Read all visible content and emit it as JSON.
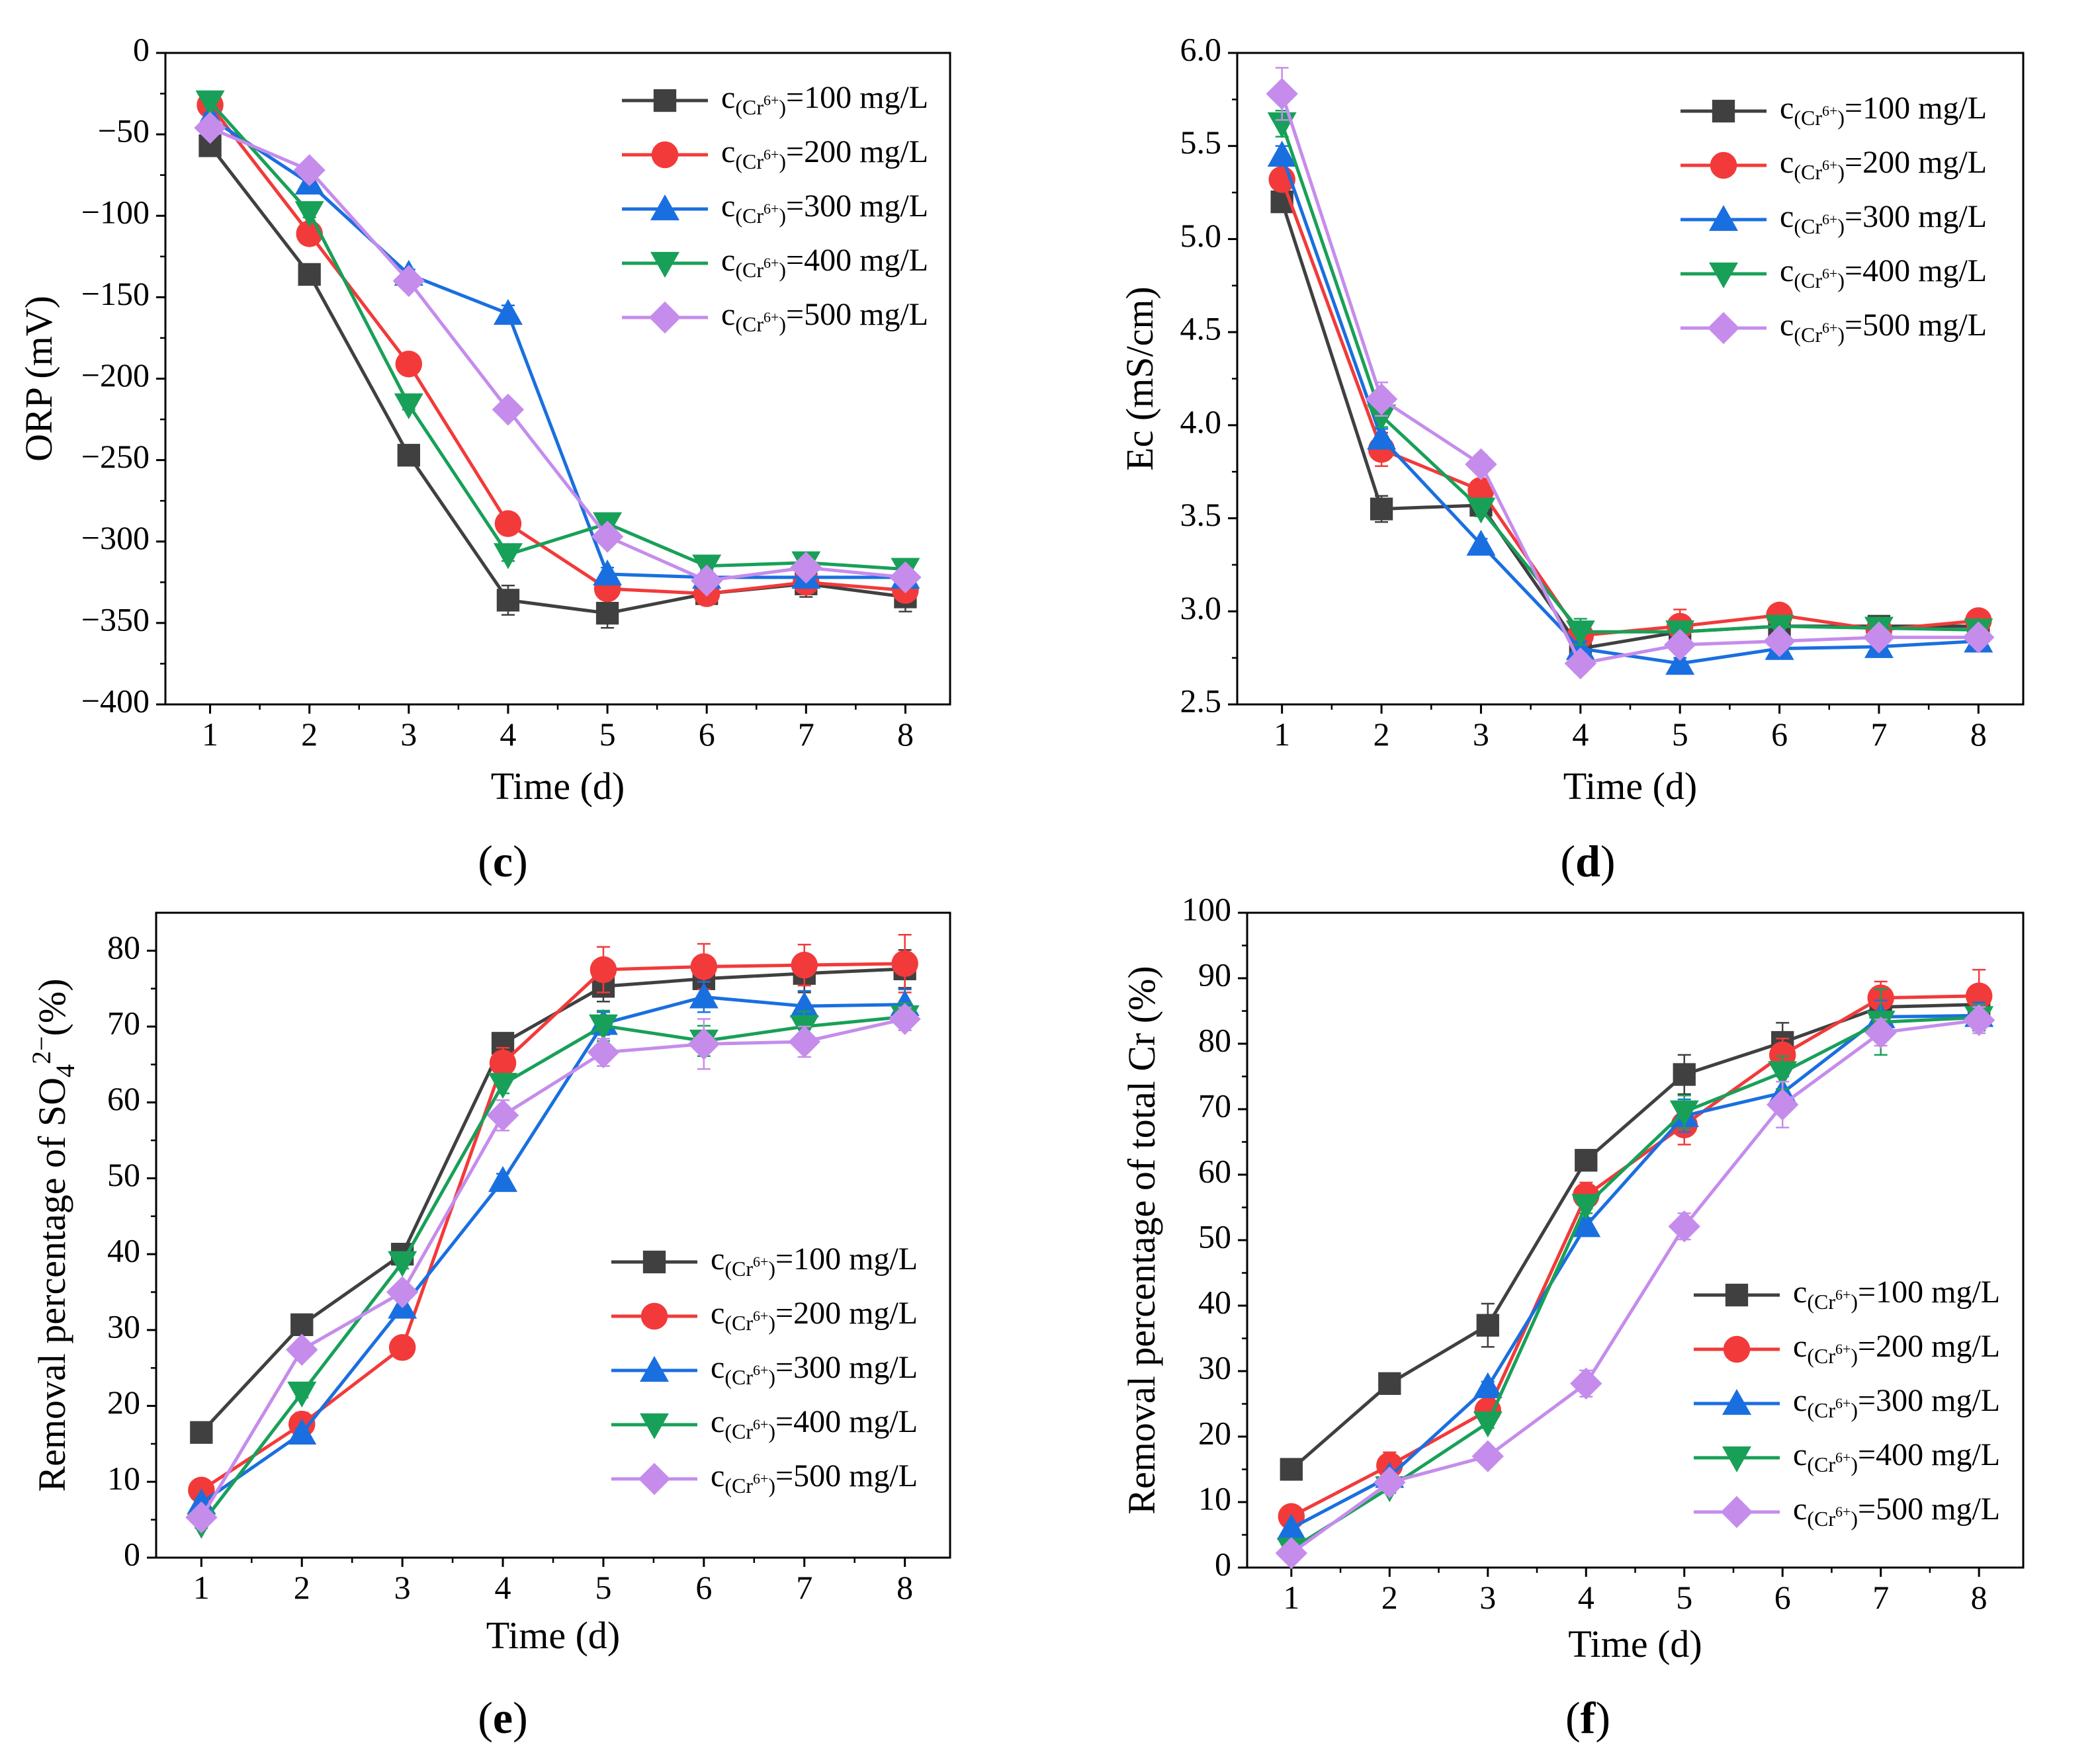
{
  "colors": {
    "100": "#404040",
    "200": "#f23a3a",
    "300": "#1a6fe0",
    "400": "#18a058",
    "500": "#c58cec"
  },
  "legend_template": {
    "prefix": "c",
    "species_open": "(Cr",
    "charge": "6+",
    "species_close": ")",
    "unit": " mg/L"
  },
  "chart_data": [
    {
      "panel": "c",
      "type": "line",
      "xlabel": "Time (d)",
      "ylabel": "ORP (mV)",
      "ylim": [
        -400,
        0
      ],
      "yticks": [
        0,
        -50,
        -100,
        -150,
        -200,
        -250,
        -300,
        -350,
        -400
      ],
      "ytick_labels": [
        "0",
        "−50",
        "−100",
        "−150",
        "−200",
        "−250",
        "−300",
        "−350",
        "−400"
      ],
      "x": [
        1,
        2,
        3,
        4,
        5,
        6,
        7,
        8
      ],
      "legend_position": "top-right",
      "series": [
        {
          "name": "c(Cr6+)=100 mg/L",
          "conc": "100",
          "marker": "square",
          "values": [
            -57,
            -136,
            -247,
            -336,
            -344,
            -332,
            -326,
            -334
          ],
          "err": [
            3,
            3,
            4,
            9,
            9,
            5,
            8,
            9
          ]
        },
        {
          "name": "c(Cr6+)=200 mg/L",
          "conc": "200",
          "marker": "circle",
          "values": [
            -32,
            -111,
            -191,
            -289,
            -329,
            -332,
            -325,
            -330
          ],
          "err": [
            3,
            3,
            3,
            4,
            4,
            5,
            5,
            5
          ]
        },
        {
          "name": "c(Cr6+)=300 mg/L",
          "conc": "300",
          "marker": "triangle-up",
          "values": [
            -40,
            -80,
            -136,
            -160,
            -320,
            -322,
            -322,
            -322
          ],
          "err": [
            3,
            3,
            3,
            5,
            4,
            4,
            4,
            4
          ]
        },
        {
          "name": "c(Cr6+)=400 mg/L",
          "conc": "400",
          "marker": "triangle-down",
          "values": [
            -30,
            -98,
            -216,
            -308,
            -289,
            -315,
            -313,
            -317
          ],
          "err": [
            3,
            3,
            3,
            4,
            4,
            3,
            6,
            4
          ]
        },
        {
          "name": "c(Cr6+)=500 mg/L",
          "conc": "500",
          "marker": "diamond",
          "values": [
            -46,
            -72,
            -140,
            -219,
            -297,
            -324,
            -316,
            -322
          ],
          "err": [
            3,
            3,
            3,
            3,
            4,
            4,
            4,
            4
          ]
        }
      ]
    },
    {
      "panel": "d",
      "type": "line",
      "xlabel": "Time (d)",
      "ylabel": "Ec (mS/cm)",
      "ylim": [
        2.5,
        6.0
      ],
      "yticks": [
        2.5,
        3.0,
        3.5,
        4.0,
        4.5,
        5.0,
        5.5,
        6.0
      ],
      "ytick_labels": [
        "2.5",
        "3.0",
        "3.5",
        "4.0",
        "4.5",
        "5.0",
        "5.5",
        "6.0"
      ],
      "x": [
        1,
        2,
        3,
        4,
        5,
        6,
        7,
        8
      ],
      "legend_position": "top-right",
      "series": [
        {
          "name": "c(Cr6+)=100 mg/L",
          "conc": "100",
          "marker": "square",
          "values": [
            5.2,
            3.55,
            3.57,
            2.8,
            2.89,
            2.92,
            2.92,
            2.92
          ],
          "err": [
            0.05,
            0.07,
            0.04,
            0.05,
            0.04,
            0.04,
            0.04,
            0.04
          ]
        },
        {
          "name": "c(Cr6+)=200 mg/L",
          "conc": "200",
          "marker": "circle",
          "values": [
            5.32,
            3.87,
            3.65,
            2.87,
            2.92,
            2.98,
            2.9,
            2.95
          ],
          "err": [
            0.06,
            0.09,
            0.05,
            0.05,
            0.09,
            0.05,
            0.04,
            0.04
          ]
        },
        {
          "name": "c(Cr6+)=300 mg/L",
          "conc": "300",
          "marker": "triangle-up",
          "values": [
            5.45,
            3.93,
            3.36,
            2.8,
            2.72,
            2.8,
            2.81,
            2.84
          ],
          "err": [
            0.05,
            0.05,
            0.03,
            0.04,
            0.03,
            0.04,
            0.03,
            0.04
          ]
        },
        {
          "name": "c(Cr6+)=400 mg/L",
          "conc": "400",
          "marker": "triangle-down",
          "values": [
            5.62,
            4.05,
            3.55,
            2.89,
            2.89,
            2.92,
            2.91,
            2.9
          ],
          "err": [
            0.07,
            0.06,
            0.04,
            0.07,
            0.04,
            0.04,
            0.03,
            0.04
          ]
        },
        {
          "name": "c(Cr6+)=500 mg/L",
          "conc": "500",
          "marker": "diamond",
          "values": [
            5.78,
            4.14,
            3.79,
            2.72,
            2.82,
            2.84,
            2.86,
            2.86
          ],
          "err": [
            0.14,
            0.09,
            0.05,
            0.05,
            0.05,
            0.04,
            0.04,
            0.04
          ]
        }
      ]
    },
    {
      "panel": "e",
      "type": "line",
      "xlabel": "Time (d)",
      "ylabel_parts": {
        "before": "Removal percentage of SO",
        "sub": "4",
        "sup": "2−",
        "after": "(%)"
      },
      "ylim": [
        0,
        85
      ],
      "yticks": [
        0,
        10,
        20,
        30,
        40,
        50,
        60,
        70,
        80
      ],
      "ytick_labels": [
        "0",
        "10",
        "20",
        "30",
        "40",
        "50",
        "60",
        "70",
        "80"
      ],
      "x": [
        1,
        2,
        3,
        4,
        5,
        6,
        7,
        8
      ],
      "legend_position": "bottom-right",
      "series": [
        {
          "name": "c(Cr6+)=100 mg/L",
          "conc": "100",
          "marker": "square",
          "values": [
            16.5,
            30.7,
            40.0,
            67.8,
            75.3,
            76.3,
            77.0,
            77.6
          ],
          "err": [
            0.6,
            0.8,
            0.8,
            1.0,
            2.0,
            2.5,
            2.5,
            2.5
          ]
        },
        {
          "name": "c(Cr6+)=200 mg/L",
          "conc": "200",
          "marker": "circle",
          "values": [
            8.9,
            17.6,
            27.7,
            65.2,
            77.5,
            77.9,
            78.1,
            78.3
          ],
          "err": [
            0.6,
            1.5,
            0.8,
            2.0,
            3.0,
            3.0,
            2.7,
            3.8
          ]
        },
        {
          "name": "c(Cr6+)=300 mg/L",
          "conc": "300",
          "marker": "triangle-up",
          "values": [
            7.2,
            16.4,
            33.0,
            49.7,
            70.4,
            73.9,
            72.7,
            72.9
          ],
          "err": [
            0.6,
            0.6,
            0.8,
            0.9,
            1.5,
            2.0,
            2.0,
            2.0
          ]
        },
        {
          "name": "c(Cr6+)=400 mg/L",
          "conc": "400",
          "marker": "triangle-down",
          "values": [
            4.4,
            21.7,
            38.9,
            62.4,
            70.1,
            68.1,
            70.0,
            71.3
          ],
          "err": [
            0.5,
            0.6,
            0.8,
            1.2,
            2.0,
            2.0,
            2.0,
            1.8
          ]
        },
        {
          "name": "c(Cr6+)=500 mg/L",
          "conc": "500",
          "marker": "diamond",
          "values": [
            5.3,
            27.4,
            35.0,
            58.3,
            66.6,
            67.7,
            68.0,
            71.0
          ],
          "err": [
            0.5,
            0.8,
            0.8,
            2.0,
            1.8,
            3.3,
            2.0,
            1.5
          ]
        }
      ]
    },
    {
      "panel": "f",
      "type": "line",
      "xlabel": "Time (d)",
      "ylabel": "Removal percentage of total Cr (%)",
      "ylim": [
        0,
        100
      ],
      "yticks": [
        0,
        10,
        20,
        30,
        40,
        50,
        60,
        70,
        80,
        90,
        100
      ],
      "ytick_labels": [
        "0",
        "10",
        "20",
        "30",
        "40",
        "50",
        "60",
        "70",
        "80",
        "90",
        "100"
      ],
      "x": [
        1,
        2,
        3,
        4,
        5,
        6,
        7,
        8
      ],
      "legend_position": "bottom-right",
      "series": [
        {
          "name": "c(Cr6+)=100 mg/L",
          "conc": "100",
          "marker": "square",
          "values": [
            15.0,
            28.1,
            37.0,
            62.2,
            75.3,
            80.2,
            85.6,
            86.0
          ],
          "err": [
            0.8,
            0.8,
            3.3,
            1.2,
            3.0,
            3.0,
            2.0,
            2.0
          ]
        },
        {
          "name": "c(Cr6+)=200 mg/L",
          "conc": "200",
          "marker": "circle",
          "values": [
            7.8,
            15.6,
            24.0,
            56.8,
            67.6,
            78.3,
            87.0,
            87.3
          ],
          "err": [
            0.6,
            2.0,
            1.5,
            2.0,
            3.0,
            2.5,
            2.5,
            4.0
          ]
        },
        {
          "name": "c(Cr6+)=300 mg/L",
          "conc": "300",
          "marker": "triangle-up",
          "values": [
            6.0,
            13.9,
            27.6,
            52.2,
            69.0,
            72.5,
            84.1,
            84.3
          ],
          "err": [
            0.5,
            0.8,
            0.8,
            1.2,
            2.5,
            2.5,
            2.5,
            2.0
          ]
        },
        {
          "name": "c(Cr6+)=400 mg/L",
          "conc": "400",
          "marker": "triangle-down",
          "values": [
            2.8,
            12.2,
            22.1,
            55.3,
            69.6,
            75.6,
            83.3,
            84.0
          ],
          "err": [
            0.5,
            0.8,
            0.8,
            1.2,
            2.5,
            2.5,
            5.0,
            2.0
          ]
        },
        {
          "name": "c(Cr6+)=500 mg/L",
          "conc": "500",
          "marker": "diamond",
          "values": [
            2.2,
            13.0,
            17.0,
            28.1,
            52.1,
            70.7,
            81.7,
            83.6
          ],
          "err": [
            0.5,
            0.8,
            0.8,
            2.0,
            2.0,
            3.5,
            2.0,
            2.0
          ]
        }
      ]
    }
  ]
}
